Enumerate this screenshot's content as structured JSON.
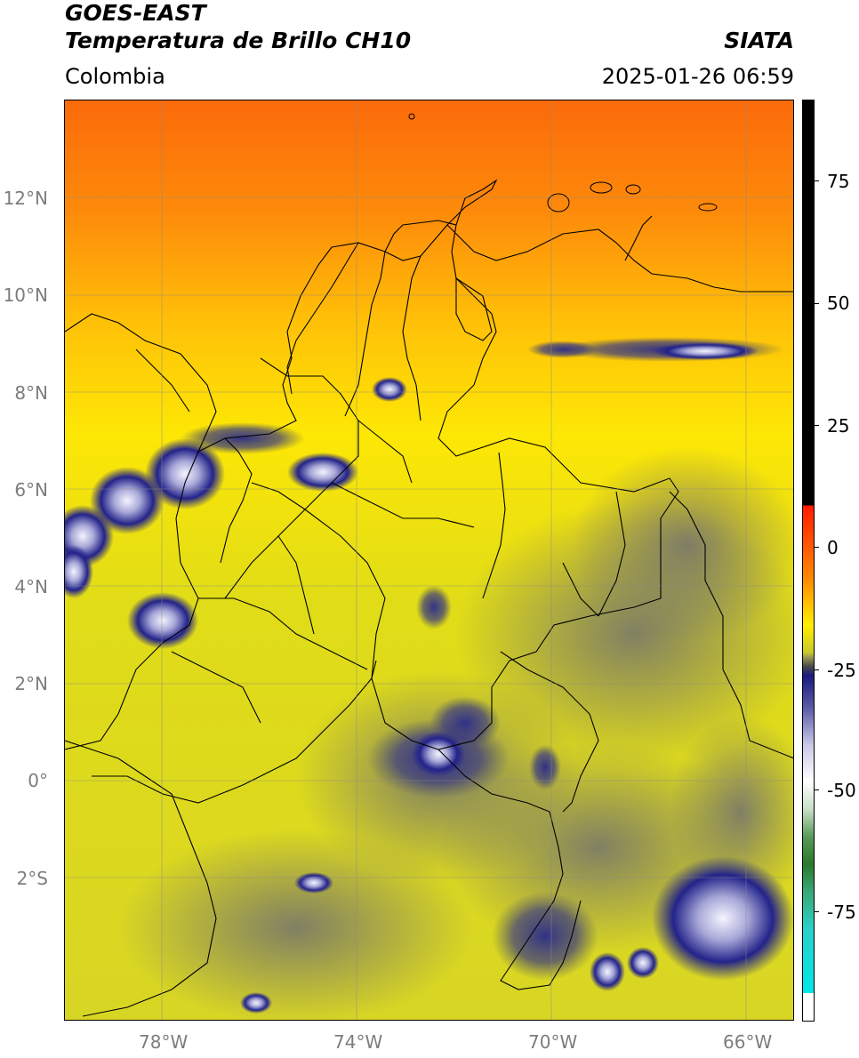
{
  "header": {
    "satellite": "GOES-EAST",
    "product": "Temperatura de Brillo CH10",
    "region": "Colombia",
    "brand": "SIATA",
    "datetime": "2025-01-26 06:59"
  },
  "map": {
    "lat_labels": [
      "12°N",
      "10°N",
      "8°N",
      "6°N",
      "4°N",
      "2°N",
      "0°",
      "2°S"
    ],
    "lon_labels": [
      "78°W",
      "74°W",
      "70°W",
      "66°W"
    ],
    "lat_range": [
      -4.8,
      14.0
    ],
    "lon_range": [
      -80.0,
      -65.0
    ]
  },
  "colorbar": {
    "ticks": [
      "75",
      "50",
      "25",
      "0",
      "-25",
      "-50",
      "-75"
    ],
    "range": [
      -98,
      90
    ]
  }
}
